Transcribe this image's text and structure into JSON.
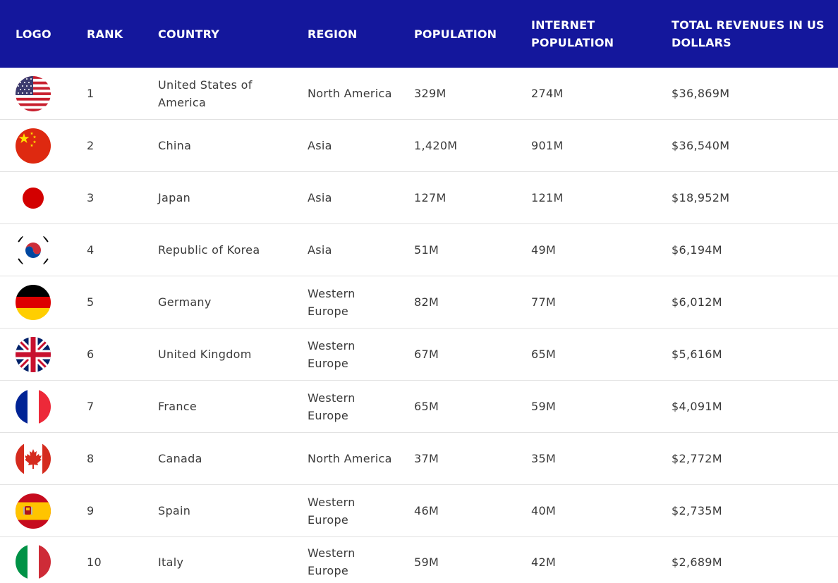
{
  "header": {
    "logo": "LOGO",
    "rank": "RANK",
    "country": "COUNTRY",
    "region": "REGION",
    "population": "POPULATION",
    "internet_population": "INTERNET POPULATION",
    "revenues": "TOTAL REVENUES IN US DOLLARS"
  },
  "colors": {
    "header_bg": "#14179c",
    "header_text": "#ffffff",
    "row_text": "#3a3a3a",
    "divider": "#e2e2e2"
  },
  "rows": [
    {
      "flag": "usa-flag-icon",
      "rank": "1",
      "country": "United States of America",
      "region": "North America",
      "population": "329M",
      "internet_population": "274M",
      "revenues": "$36,869M"
    },
    {
      "flag": "china-flag-icon",
      "rank": "2",
      "country": "China",
      "region": "Asia",
      "population": "1,420M",
      "internet_population": "901M",
      "revenues": "$36,540M"
    },
    {
      "flag": "japan-flag-icon",
      "rank": "3",
      "country": "Japan",
      "region": "Asia",
      "population": "127M",
      "internet_population": "121M",
      "revenues": "$18,952M"
    },
    {
      "flag": "korea-flag-icon",
      "rank": "4",
      "country": "Republic of Korea",
      "region": "Asia",
      "population": "51M",
      "internet_population": "49M",
      "revenues": "$6,194M"
    },
    {
      "flag": "germany-flag-icon",
      "rank": "5",
      "country": "Germany",
      "region": "Western Europe",
      "population": "82M",
      "internet_population": "77M",
      "revenues": "$6,012M"
    },
    {
      "flag": "uk-flag-icon",
      "rank": "6",
      "country": "United Kingdom",
      "region": "Western Europe",
      "population": "67M",
      "internet_population": "65M",
      "revenues": "$5,616M"
    },
    {
      "flag": "france-flag-icon",
      "rank": "7",
      "country": "France",
      "region": "Western Europe",
      "population": "65M",
      "internet_population": "59M",
      "revenues": "$4,091M"
    },
    {
      "flag": "canada-flag-icon",
      "rank": "8",
      "country": "Canada",
      "region": "North America",
      "population": "37M",
      "internet_population": "35M",
      "revenues": "$2,772M"
    },
    {
      "flag": "spain-flag-icon",
      "rank": "9",
      "country": "Spain",
      "region": "Western Europe",
      "population": "46M",
      "internet_population": "40M",
      "revenues": "$2,735M"
    },
    {
      "flag": "italy-flag-icon",
      "rank": "10",
      "country": "Italy",
      "region": "Western Europe",
      "population": "59M",
      "internet_population": "42M",
      "revenues": "$2,689M"
    }
  ]
}
